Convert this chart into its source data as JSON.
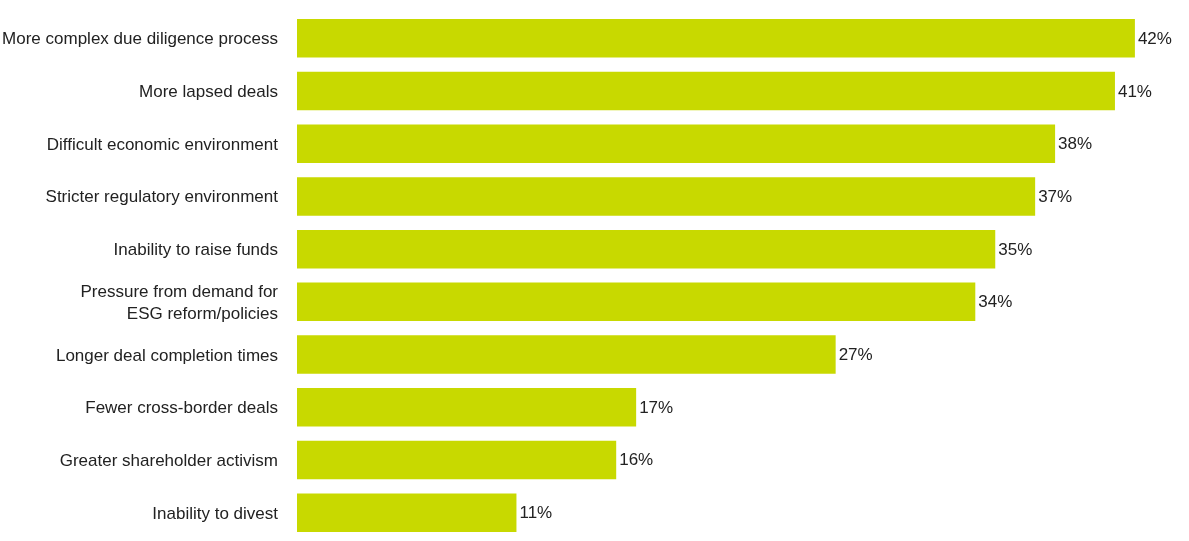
{
  "chart_data": {
    "type": "bar",
    "orientation": "horizontal",
    "categories": [
      "More complex due diligence process",
      "More lapsed deals",
      "Difficult economic environment",
      "Stricter regulatory environment",
      "Inability to raise funds",
      "Pressure from demand for\nESG reform/policies",
      "Longer deal completion times",
      "Fewer cross-border deals",
      "Greater shareholder activism",
      "Inability to divest"
    ],
    "values": [
      42,
      41,
      38,
      37,
      35,
      34,
      27,
      17,
      16,
      11
    ],
    "value_labels": [
      "42%",
      "41%",
      "38%",
      "37%",
      "35%",
      "34%",
      "27%",
      "17%",
      "16%",
      "11%"
    ],
    "color": "#c8d900",
    "tick_labels": "y"
  }
}
